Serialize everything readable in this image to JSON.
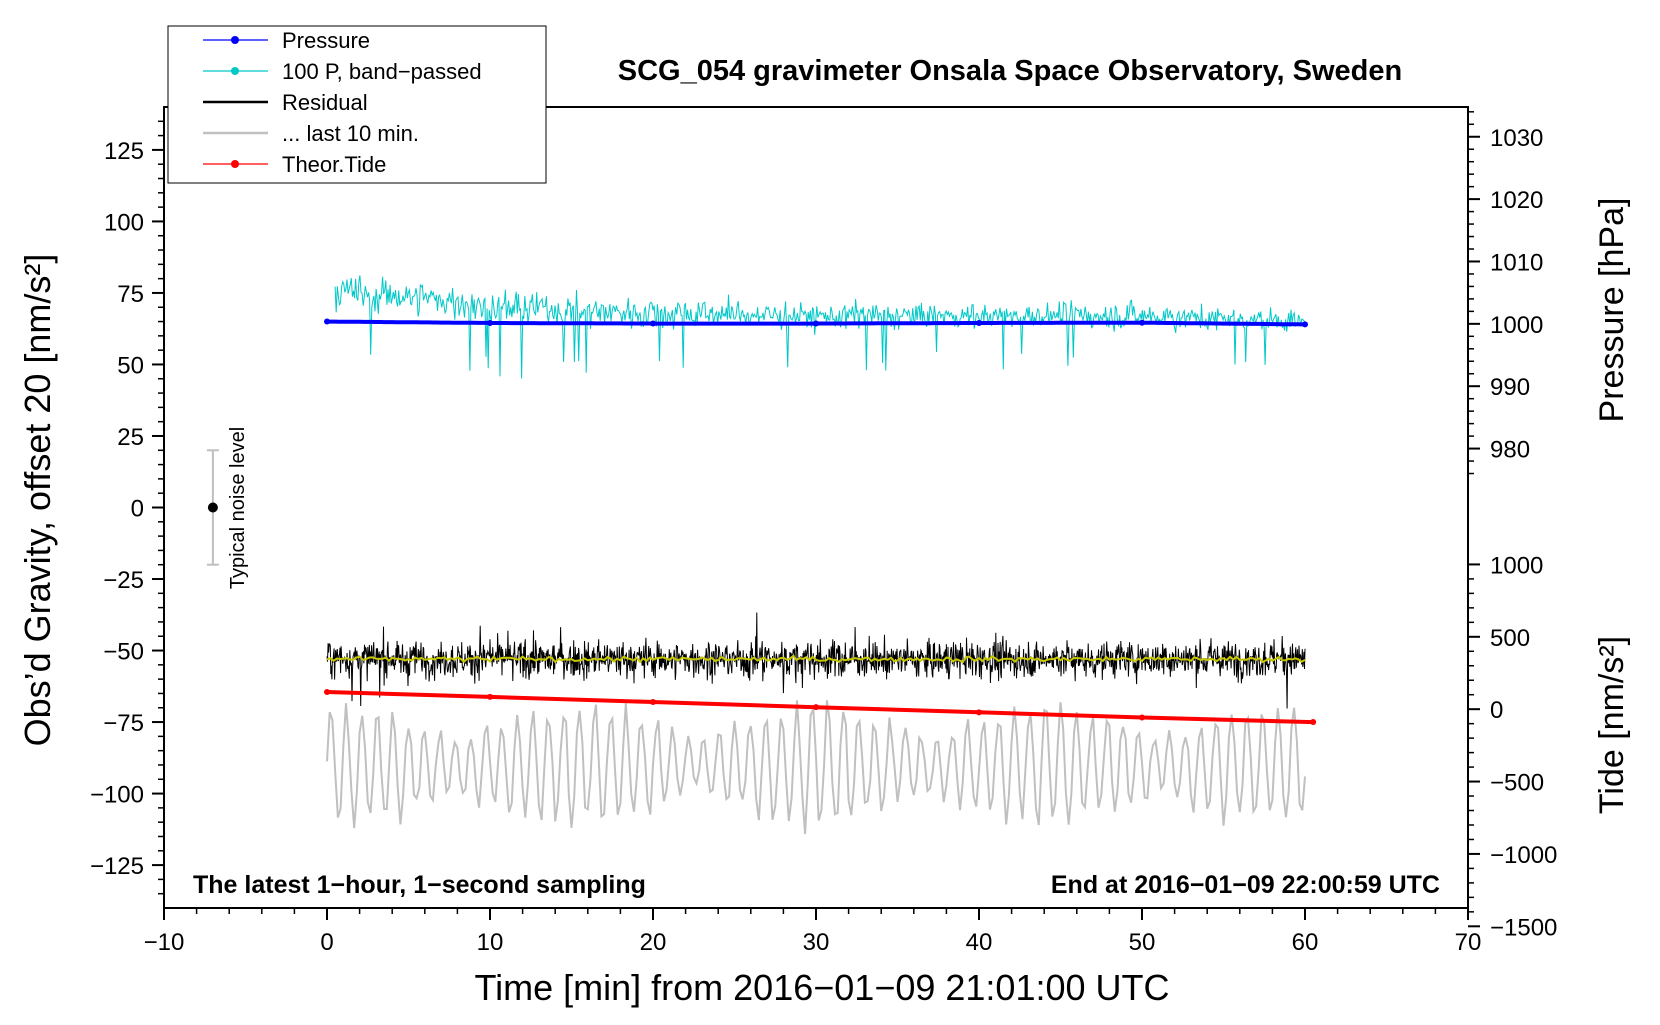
{
  "chart_data": {
    "type": "line",
    "title": "SCG_054 gravimeter Onsala Space Observatory, Sweden",
    "xlabel": "Time [min] from 2016−01−09 21:01:00 UTC",
    "ylabel_left": "Obs’d Gravity, offset 20 [nm/s²]",
    "ylabel_right_top": "Pressure [hPa]",
    "ylabel_right_bottom": "Tide [nm/s²]",
    "xlim": [
      -10,
      70
    ],
    "ylim": [
      -140,
      140
    ],
    "x_ticks": [
      -10,
      0,
      10,
      20,
      30,
      40,
      50,
      60,
      70
    ],
    "x_tick_labels": [
      "−10",
      "0",
      "10",
      "20",
      "30",
      "40",
      "50",
      "60",
      "70"
    ],
    "y_ticks": [
      125,
      100,
      75,
      50,
      25,
      0,
      -25,
      -50,
      -75,
      -100,
      -125
    ],
    "y_tick_labels": [
      "125",
      "100",
      "75",
      "50",
      "25",
      "0",
      "−25",
      "−50",
      "−75",
      "−100",
      "−125"
    ],
    "pressure_axis": {
      "ticks": [
        1030,
        1020,
        1010,
        1000,
        990,
        980
      ],
      "tick_labels": [
        "1030",
        "1020",
        "1010",
        "1000",
        "990",
        "980"
      ],
      "ref_value": 1000,
      "ref_gravity": 64.2,
      "gravity_per_hpa": 2.18
    },
    "tide_axis": {
      "ticks": [
        1000,
        500,
        0,
        -500,
        -1000,
        -1500
      ],
      "tick_labels": [
        "1000",
        "500",
        "0",
        "−500",
        "−1000",
        "−1500"
      ],
      "ref_value": 0,
      "ref_gravity": -70.5,
      "gravity_per_unit": 0.0506
    },
    "annotations": {
      "bottom_left": "The latest 1−hour, 1−second sampling",
      "bottom_right": "End at 2016−01−09 22:00:59 UTC",
      "noise_label": "Typical noise level"
    },
    "noise_bar": {
      "x": -7,
      "center": 0,
      "low": -20,
      "high": 20
    },
    "legend": {
      "position": "top-left",
      "entries": [
        {
          "label": "Pressure",
          "color": "#0000ff",
          "marker": true
        },
        {
          "label": "100 P, band−passed",
          "color": "#00c8c8",
          "marker": true
        },
        {
          "label": "Residual",
          "color": "#000000",
          "marker": false
        },
        {
          "label": "... last 10 min.",
          "color": "#c0c0c0",
          "marker": false
        },
        {
          "label": "Theor.Tide",
          "color": "#ff0000",
          "marker": true
        }
      ]
    },
    "series": [
      {
        "name": "Pressure",
        "color": "#0000ff",
        "x": [
          0,
          10,
          20,
          30,
          40,
          50,
          60
        ],
        "values": [
          65.0,
          64.5,
          64.3,
          64.3,
          64.5,
          64.6,
          64.0
        ]
      },
      {
        "name": "100 P, band-passed",
        "color": "#00c8c8",
        "x": [
          0,
          5,
          10,
          20,
          30,
          40,
          50,
          60
        ],
        "values": [
          75,
          74,
          70,
          68,
          67,
          67,
          67,
          65
        ],
        "spread": [
          12,
          10,
          10,
          9,
          8,
          7,
          8,
          6
        ]
      },
      {
        "name": "Residual",
        "color": "#000000",
        "x": [
          0,
          60
        ],
        "values": [
          -53,
          -53
        ],
        "spread": [
          10,
          10
        ]
      },
      {
        "name": "Residual smoothed",
        "color": "#c8c800",
        "x": [
          0,
          60
        ],
        "values": [
          -53,
          -53
        ]
      },
      {
        "name": "... last 10 min.",
        "color": "#c0c0c0",
        "x": [
          0,
          60
        ],
        "values": [
          -90,
          -90
        ],
        "spread": [
          15,
          15
        ]
      },
      {
        "name": "Theor.Tide",
        "color": "#ff0000",
        "x": [
          0,
          10,
          20,
          30,
          40,
          50,
          60.5
        ],
        "values": [
          -64.5,
          -66.2,
          -68.0,
          -69.8,
          -71.6,
          -73.4,
          -75.0
        ]
      }
    ]
  }
}
